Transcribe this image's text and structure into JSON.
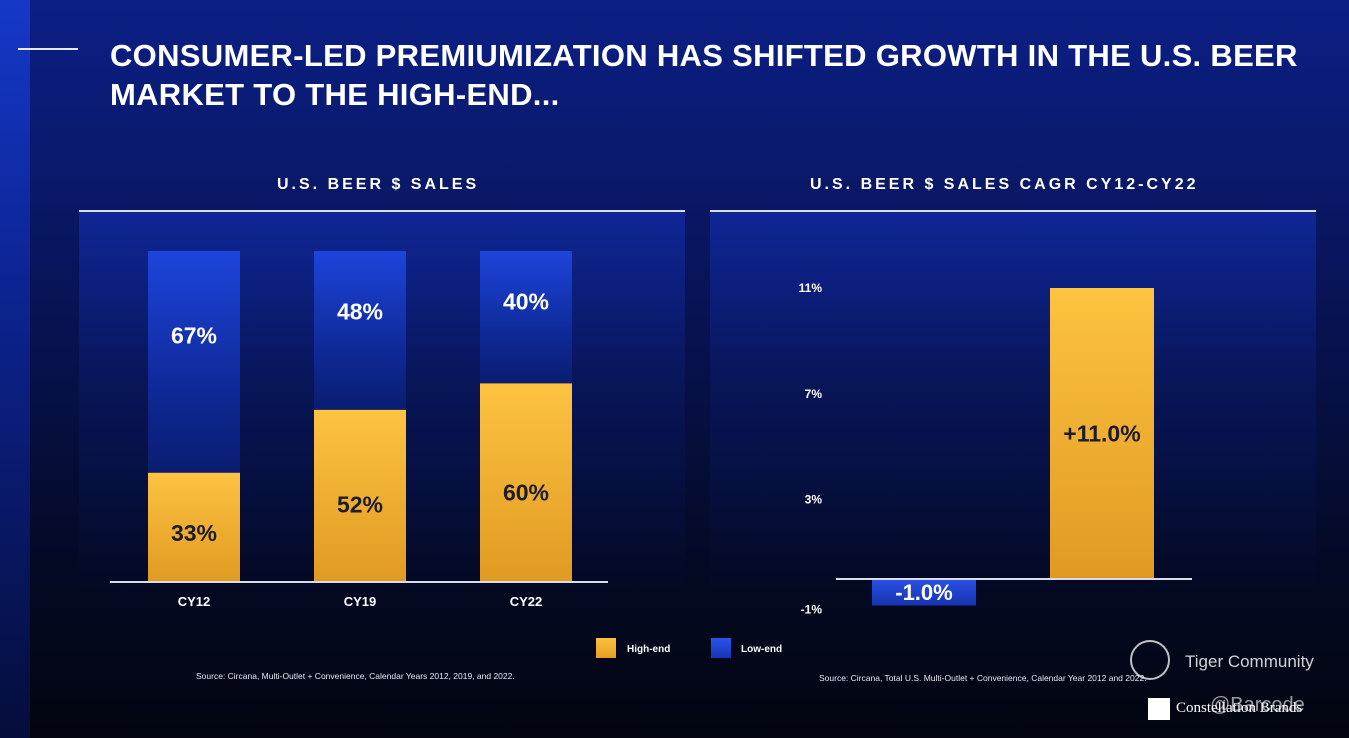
{
  "page": {
    "title_line1": "CONSUMER-LED PREMIUMIZATION HAS SHIFTED GROWTH IN THE U.S. BEER",
    "title_line2": "MARKET TO THE HIGH-END..."
  },
  "colors": {
    "high_end": "#f7b731",
    "low_end": "#1a3fd0",
    "text": "#ffffff"
  },
  "chart_data": [
    {
      "type": "bar",
      "stacked": true,
      "title": "U.S. BEER $ SALES",
      "categories": [
        "CY12",
        "CY19",
        "CY22"
      ],
      "series": [
        {
          "name": "High-end",
          "values": [
            33,
            52,
            60
          ],
          "labels": [
            "33%",
            "52%",
            "60%"
          ]
        },
        {
          "name": "Low-end",
          "values": [
            67,
            48,
            40
          ],
          "labels": [
            "67%",
            "48%",
            "40%"
          ]
        }
      ],
      "ylim": [
        0,
        100
      ],
      "source": "Source: Circana, Multi-Outlet + Convenience, Calendar Years 2012, 2019, and 2022."
    },
    {
      "type": "bar",
      "title": "U.S. BEER $ SALES CAGR CY12-CY22",
      "categories": [
        "Low-end",
        "High-end"
      ],
      "values": [
        -1.0,
        11.0
      ],
      "labels": [
        "-1.0%",
        "+11.0%"
      ],
      "yticks": [
        -1,
        3,
        7,
        11
      ],
      "ytick_labels": [
        "-1%",
        "3%",
        "7%",
        "11%"
      ],
      "ylim": [
        -1,
        11
      ],
      "source": "Source: Circana, Total U.S. Multi-Outlet + Convenience, Calendar Year 2012 and 2022."
    }
  ],
  "legend": {
    "high_end_label": "High-end",
    "low_end_label": "Low-end"
  },
  "watermark": {
    "text": "Tiger Community",
    "handle": "@Barcode",
    "brand": "Constellation Brands"
  }
}
